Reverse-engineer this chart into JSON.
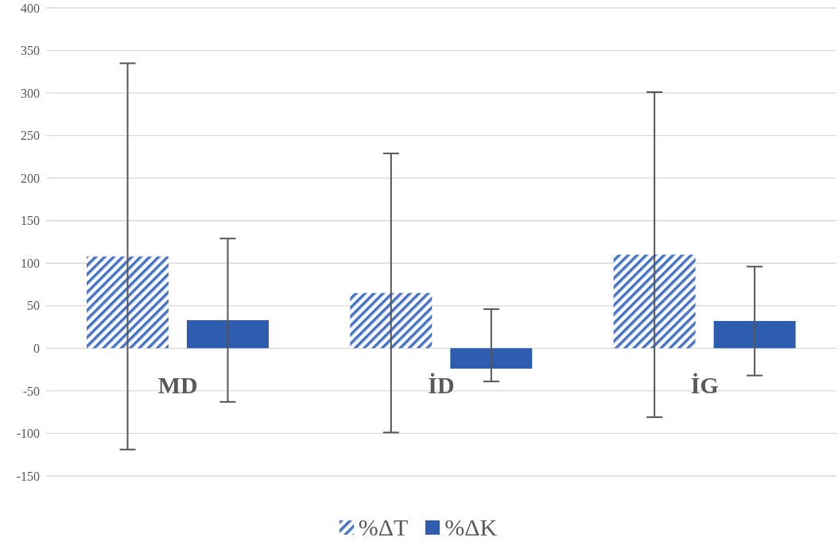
{
  "chart_data": {
    "type": "bar",
    "categories": [
      "MD",
      "İD",
      "İG"
    ],
    "series": [
      {
        "name": "%ΔT",
        "color": "#4472c4",
        "values": [
          108,
          65,
          110
        ],
        "errors": [
          227,
          164,
          191
        ]
      },
      {
        "name": "%ΔK",
        "color": "#2e5cae",
        "values": [
          33,
          -24,
          32
        ],
        "errors": [
          96,
          [
            -39,
            46
          ],
          64
        ]
      }
    ],
    "ylim": [
      -150,
      400
    ],
    "yticks": [
      -150,
      -100,
      -50,
      0,
      50,
      100,
      150,
      200,
      250,
      300,
      350,
      400
    ],
    "grid": "y",
    "legend": "bottom"
  }
}
